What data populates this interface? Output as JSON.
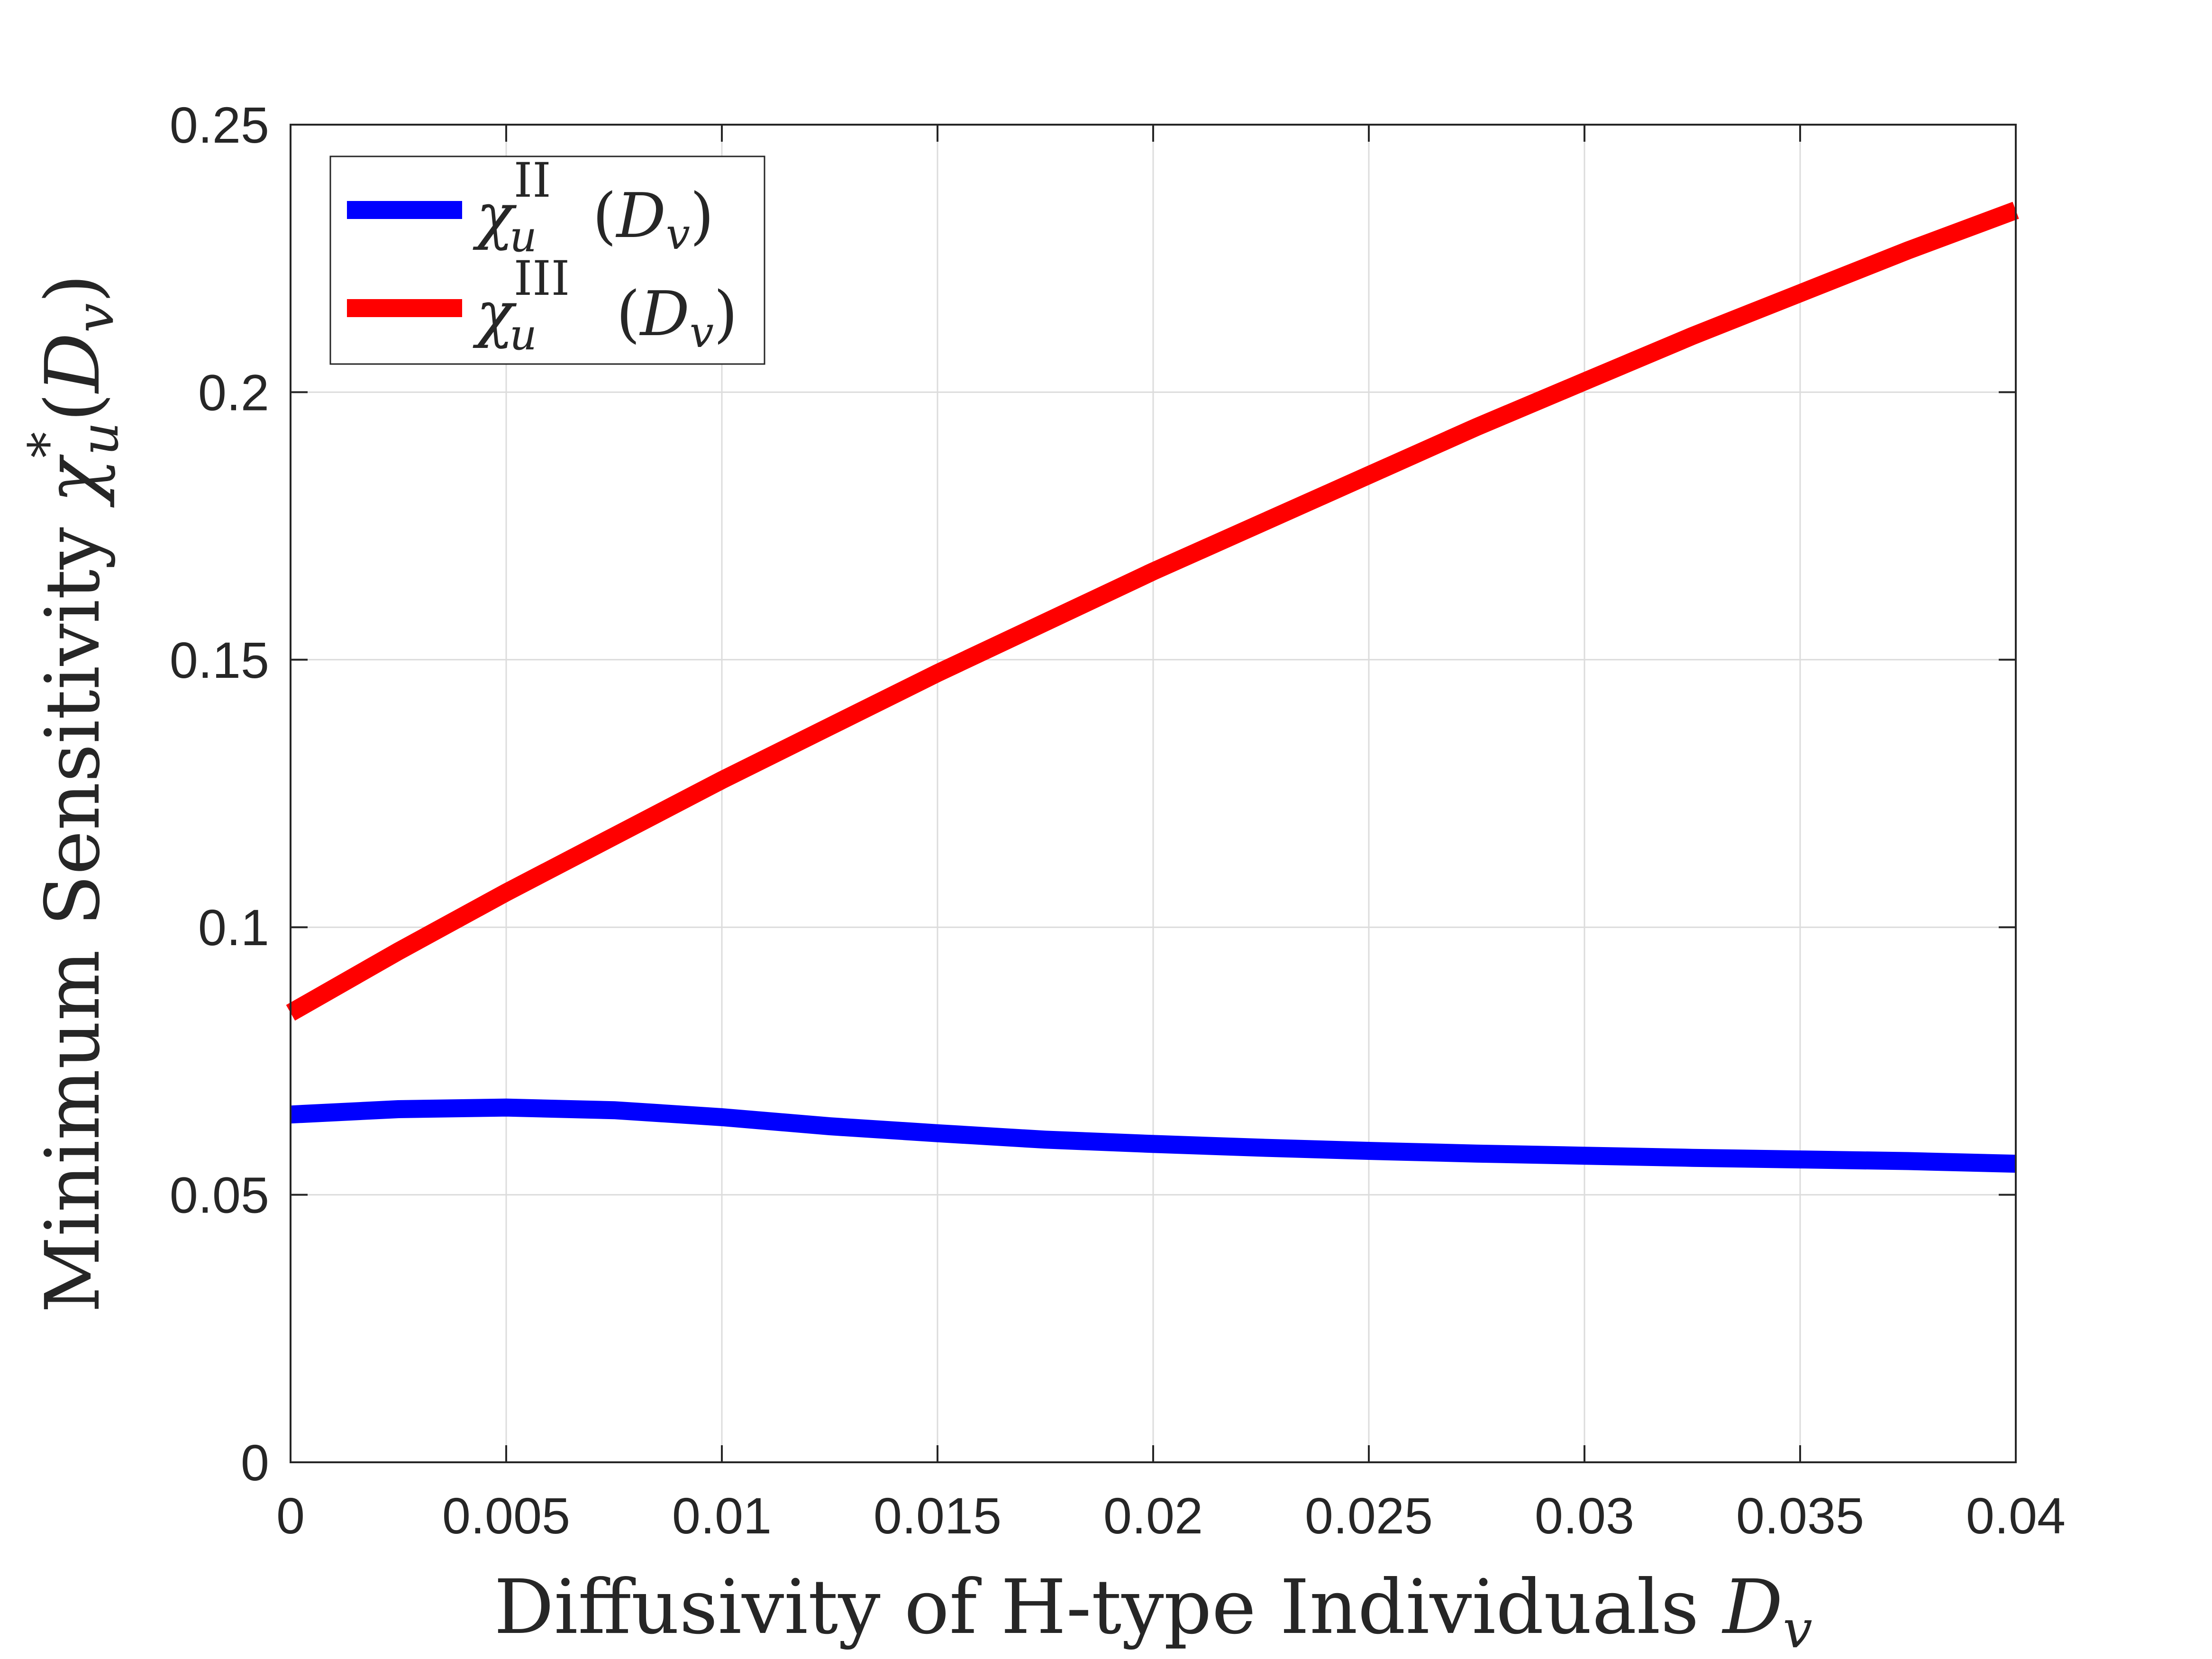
{
  "chart_data": {
    "type": "line",
    "title": "",
    "xlabel": {
      "text": "Diffusivity of H-type Individuals ",
      "math_base": "D",
      "math_sub": "v"
    },
    "ylabel": {
      "text": "Minimum Sensitivity ",
      "math_base": "χ",
      "math_sup": "*",
      "math_sub": "u",
      "math_arg_base": "D",
      "math_arg_sub": "v"
    },
    "xlim": [
      0,
      0.04
    ],
    "ylim": [
      0,
      0.25
    ],
    "xticks": [
      0,
      0.005,
      0.01,
      0.015,
      0.02,
      0.025,
      0.03,
      0.035,
      0.04
    ],
    "xtick_labels": [
      "0",
      "0.005",
      "0.01",
      "0.015",
      "0.02",
      "0.025",
      "0.03",
      "0.035",
      "0.04"
    ],
    "yticks": [
      0,
      0.05,
      0.1,
      0.15,
      0.2,
      0.25
    ],
    "ytick_labels": [
      "0",
      "0.05",
      "0.1",
      "0.15",
      "0.2",
      "0.25"
    ],
    "grid": true,
    "legend_position": "top-left",
    "x": [
      0,
      0.0025,
      0.005,
      0.0075,
      0.01,
      0.0125,
      0.015,
      0.0175,
      0.02,
      0.0225,
      0.025,
      0.0275,
      0.03,
      0.0325,
      0.035,
      0.0375,
      0.04
    ],
    "series": [
      {
        "name": "II",
        "legend": {
          "base": "χ",
          "sub": "u",
          "sup": "II",
          "arg_base": "D",
          "arg_sub": "v"
        },
        "color": "#0000ff",
        "values": [
          0.065,
          0.066,
          0.0663,
          0.0658,
          0.0645,
          0.0628,
          0.0615,
          0.0603,
          0.0595,
          0.0588,
          0.0582,
          0.0577,
          0.0573,
          0.0569,
          0.0566,
          0.0563,
          0.0558
        ]
      },
      {
        "name": "III",
        "legend": {
          "base": "χ",
          "sub": "u",
          "sup": "III",
          "arg_base": "D",
          "arg_sub": "v"
        },
        "color": "#ff0000",
        "values": [
          0.084,
          0.0955,
          0.1065,
          0.117,
          0.1275,
          0.1375,
          0.1475,
          0.157,
          0.1665,
          0.1755,
          0.1845,
          0.1935,
          0.202,
          0.2105,
          0.2185,
          0.2265,
          0.234
        ]
      }
    ]
  }
}
